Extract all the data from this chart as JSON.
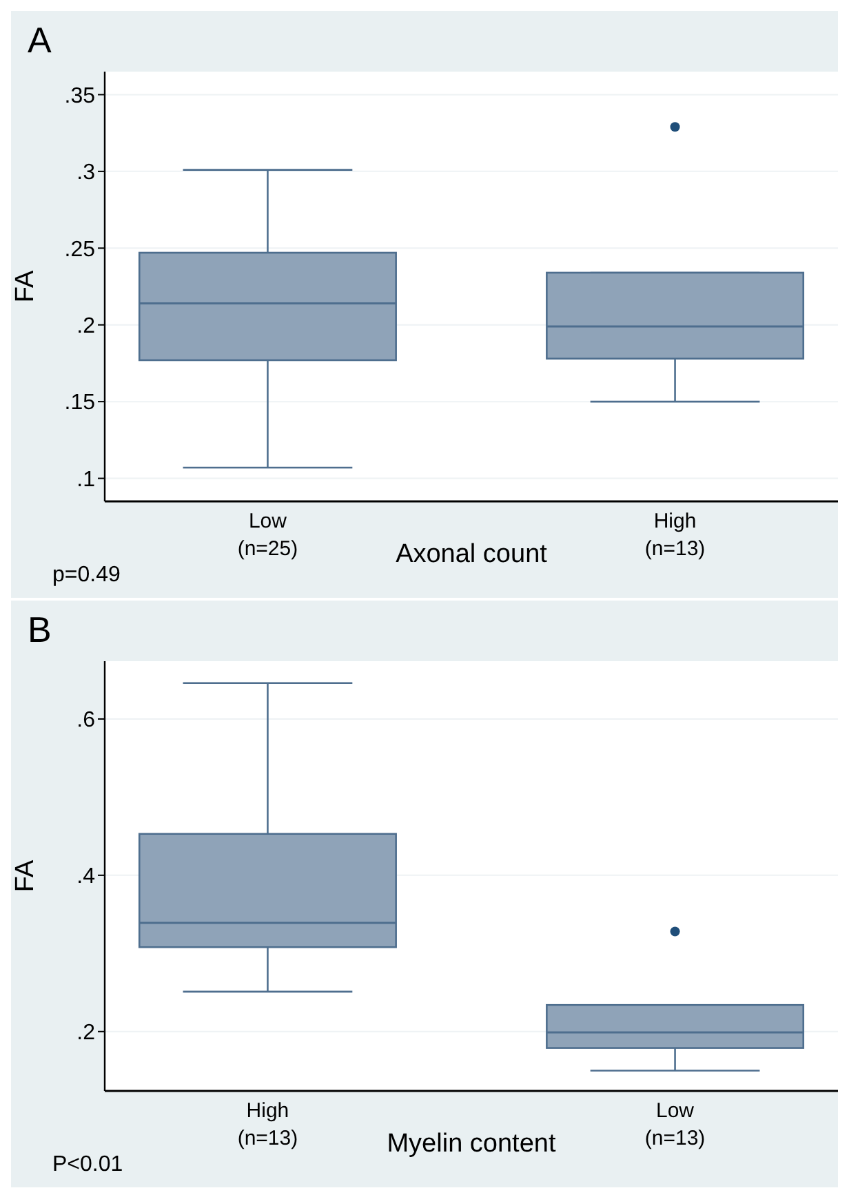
{
  "chart_data": [
    {
      "type": "box",
      "title": "A",
      "categories": [
        "Low\n(n=25)",
        "High\n(n=13)"
      ],
      "xlabel": "Axonal count",
      "ylabel": "FA",
      "color": "#8fa3b8",
      "ylim": [
        0.085,
        0.365
      ],
      "yticks": [
        {
          "value": 0.1,
          "label": ".1"
        },
        {
          "value": 0.15,
          "label": ".15"
        },
        {
          "value": 0.2,
          "label": ".2"
        },
        {
          "value": 0.25,
          "label": ".25"
        },
        {
          "value": 0.3,
          "label": ".3"
        },
        {
          "value": 0.35,
          "label": ".35"
        }
      ],
      "grid": "y",
      "annotations": [
        "p=0.49"
      ],
      "boxes": [
        {
          "low": 0.107,
          "q1": 0.177,
          "median": 0.214,
          "q3": 0.247,
          "high": 0.301
        },
        {
          "low": 0.15,
          "q1": 0.178,
          "median": 0.199,
          "q3": 0.234,
          "high": 0.234,
          "outliers": [
            0.329
          ]
        }
      ]
    },
    {
      "type": "box",
      "title": "B",
      "categories": [
        "High\n(n=13)",
        "Low\n(n=13)"
      ],
      "xlabel": "Myelin content",
      "ylabel": "FA",
      "color": "#8fa3b8",
      "ylim": [
        0.124,
        0.674
      ],
      "yticks": [
        {
          "value": 0.2,
          "label": ".2"
        },
        {
          "value": 0.4,
          "label": ".4"
        },
        {
          "value": 0.6,
          "label": ".6"
        }
      ],
      "grid": "y",
      "annotations": [
        "P<0.01"
      ],
      "boxes": [
        {
          "low": 0.251,
          "q1": 0.308,
          "median": 0.339,
          "q3": 0.453,
          "high": 0.646
        },
        {
          "low": 0.15,
          "q1": 0.179,
          "median": 0.199,
          "q3": 0.234,
          "high": 0.234,
          "outliers": [
            0.328
          ]
        }
      ]
    }
  ]
}
